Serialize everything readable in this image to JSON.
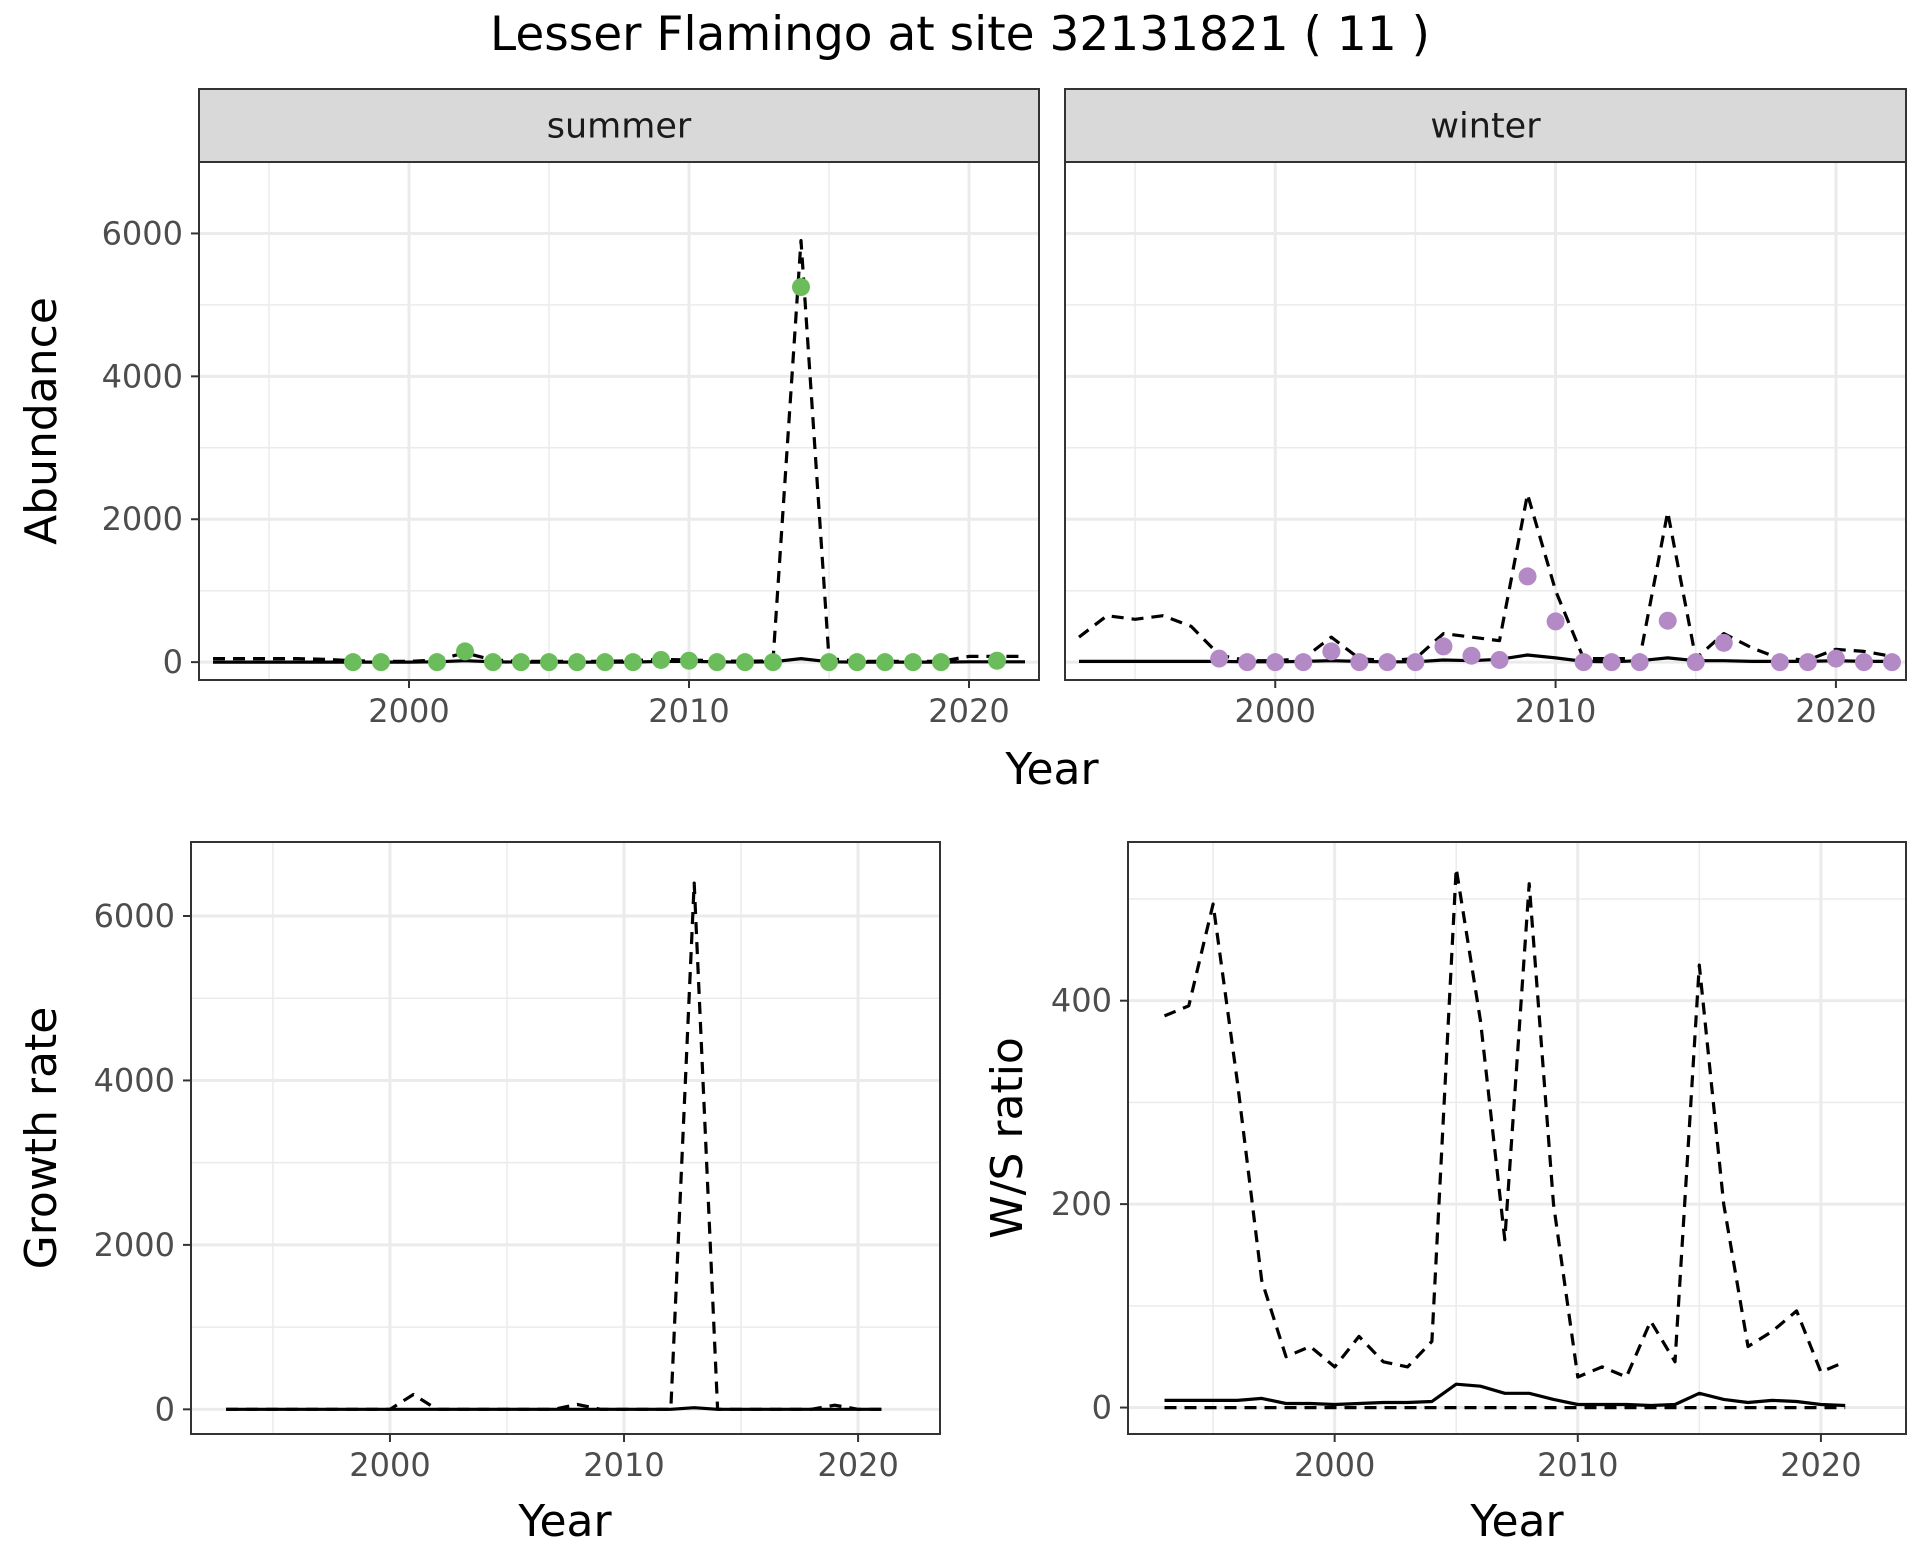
{
  "title": "Lesser Flamingo at site 32131821 ( 11 )",
  "colors": {
    "summer_points": "#6bbd5b",
    "winter_points": "#b48ac6",
    "line": "#000000",
    "strip": "#d9d9d9"
  },
  "chart_data": [
    {
      "id": "summer",
      "type": "line",
      "panel_label": "summer",
      "xlabel": "Year",
      "ylabel": "Abundance",
      "xlim": [
        1992.5,
        2022.5
      ],
      "ylim": [
        -250,
        7000
      ],
      "x_ticks": [
        2000,
        2010,
        2020
      ],
      "y_ticks": [
        0,
        2000,
        4000,
        6000
      ],
      "grid": true,
      "points": {
        "name": "observed count",
        "x": [
          1998,
          1999,
          2001,
          2002,
          2003,
          2004,
          2005,
          2006,
          2007,
          2008,
          2009,
          2010,
          2011,
          2012,
          2013,
          2014,
          2015,
          2016,
          2017,
          2018,
          2019,
          2021
        ],
        "y": [
          0,
          0,
          0,
          150,
          0,
          0,
          0,
          0,
          0,
          0,
          30,
          20,
          0,
          0,
          0,
          5250,
          0,
          0,
          0,
          0,
          0,
          20
        ]
      },
      "series": [
        {
          "style": "solid",
          "x": [
            1993,
            1994,
            1995,
            1996,
            1997,
            1998,
            1999,
            2000,
            2001,
            2002,
            2003,
            2004,
            2005,
            2006,
            2007,
            2008,
            2009,
            2010,
            2011,
            2012,
            2013,
            2014,
            2015,
            2016,
            2017,
            2018,
            2019,
            2020,
            2021,
            2022
          ],
          "y": [
            0,
            0,
            0,
            0,
            0,
            0,
            0,
            0,
            5,
            20,
            5,
            0,
            0,
            0,
            0,
            0,
            10,
            10,
            5,
            0,
            5,
            50,
            5,
            0,
            0,
            0,
            0,
            5,
            5,
            5
          ]
        },
        {
          "style": "dashed",
          "x": [
            1993,
            1994,
            1995,
            1996,
            1997,
            1998,
            1999,
            2000,
            2001,
            2002,
            2003,
            2004,
            2005,
            2006,
            2007,
            2008,
            2009,
            2010,
            2011,
            2012,
            2013,
            2014,
            2015,
            2016,
            2017,
            2018,
            2019,
            2020,
            2021,
            2022
          ],
          "y": [
            50,
            50,
            50,
            50,
            40,
            20,
            10,
            10,
            30,
            130,
            30,
            10,
            10,
            10,
            10,
            20,
            40,
            30,
            20,
            10,
            20,
            5900,
            50,
            10,
            10,
            10,
            10,
            80,
            80,
            80
          ]
        }
      ]
    },
    {
      "id": "winter",
      "type": "line",
      "panel_label": "winter",
      "xlabel": "Year",
      "ylabel": "Abundance",
      "xlim": [
        1992.5,
        2022.5
      ],
      "ylim": [
        -250,
        7000
      ],
      "x_ticks": [
        2000,
        2010,
        2020
      ],
      "y_ticks": [
        0,
        2000,
        4000,
        6000
      ],
      "grid": true,
      "points": {
        "name": "observed count",
        "x": [
          1998,
          1999,
          2000,
          2001,
          2002,
          2003,
          2004,
          2005,
          2006,
          2007,
          2008,
          2009,
          2010,
          2011,
          2012,
          2013,
          2014,
          2015,
          2016,
          2018,
          2019,
          2020,
          2021,
          2022
        ],
        "y": [
          50,
          0,
          0,
          0,
          150,
          0,
          0,
          0,
          220,
          90,
          30,
          1200,
          570,
          0,
          0,
          0,
          580,
          0,
          270,
          0,
          0,
          50,
          0,
          0
        ]
      },
      "series": [
        {
          "style": "solid",
          "x": [
            1993,
            1994,
            1995,
            1996,
            1997,
            1998,
            1999,
            2000,
            2001,
            2002,
            2003,
            2004,
            2005,
            2006,
            2007,
            2008,
            2009,
            2010,
            2011,
            2012,
            2013,
            2014,
            2015,
            2016,
            2017,
            2018,
            2019,
            2020,
            2021,
            2022
          ],
          "y": [
            10,
            10,
            10,
            10,
            10,
            10,
            5,
            5,
            10,
            20,
            10,
            5,
            5,
            30,
            20,
            40,
            100,
            60,
            10,
            5,
            20,
            60,
            20,
            20,
            10,
            10,
            10,
            20,
            10,
            10
          ]
        },
        {
          "style": "dashed",
          "x": [
            1993,
            1994,
            1995,
            1996,
            1997,
            1998,
            1999,
            2000,
            2001,
            2002,
            2003,
            2004,
            2005,
            2006,
            2007,
            2008,
            2009,
            2010,
            2011,
            2012,
            2013,
            2014,
            2015,
            2016,
            2017,
            2018,
            2019,
            2020,
            2021,
            2022
          ],
          "y": [
            350,
            650,
            600,
            650,
            500,
            100,
            20,
            20,
            50,
            350,
            50,
            20,
            50,
            400,
            350,
            300,
            2350,
            1000,
            50,
            50,
            50,
            2100,
            50,
            400,
            200,
            50,
            30,
            180,
            150,
            80
          ]
        }
      ]
    },
    {
      "id": "growth",
      "type": "line",
      "xlabel": "Year",
      "ylabel": "Growth rate",
      "xlim": [
        1991.5,
        2023.5
      ],
      "ylim": [
        -300,
        6900
      ],
      "x_ticks": [
        2000,
        2010,
        2020
      ],
      "y_ticks": [
        0,
        2000,
        4000,
        6000
      ],
      "grid": true,
      "series": [
        {
          "style": "solid",
          "x": [
            1993,
            1994,
            1995,
            1996,
            1997,
            1998,
            1999,
            2000,
            2001,
            2002,
            2003,
            2004,
            2005,
            2006,
            2007,
            2008,
            2009,
            2010,
            2011,
            2012,
            2013,
            2014,
            2015,
            2016,
            2017,
            2018,
            2019,
            2020,
            2021
          ],
          "y": [
            0,
            0,
            0,
            0,
            0,
            0,
            0,
            0,
            0,
            0,
            0,
            0,
            0,
            0,
            0,
            0,
            0,
            0,
            0,
            0,
            20,
            0,
            0,
            0,
            0,
            0,
            0,
            0,
            0
          ]
        },
        {
          "style": "dashed",
          "x": [
            1993,
            1994,
            1995,
            1996,
            1997,
            1998,
            1999,
            2000,
            2001,
            2002,
            2003,
            2004,
            2005,
            2006,
            2007,
            2008,
            2009,
            2010,
            2011,
            2012,
            2013,
            2014,
            2015,
            2016,
            2017,
            2018,
            2019,
            2020,
            2021
          ],
          "y": [
            0,
            0,
            0,
            0,
            0,
            0,
            0,
            0,
            180,
            0,
            0,
            0,
            0,
            0,
            0,
            60,
            0,
            0,
            0,
            0,
            6400,
            0,
            0,
            0,
            0,
            0,
            50,
            0,
            0
          ]
        }
      ]
    },
    {
      "id": "ratio",
      "type": "line",
      "xlabel": "Year",
      "ylabel": "W/S ratio",
      "xlim": [
        1991.5,
        2023.5
      ],
      "ylim": [
        -26,
        556
      ],
      "x_ticks": [
        2000,
        2010,
        2020
      ],
      "y_ticks": [
        0,
        200,
        400
      ],
      "grid": true,
      "series": [
        {
          "style": "solid",
          "x": [
            1993,
            1994,
            1995,
            1996,
            1997,
            1998,
            1999,
            2000,
            2001,
            2002,
            2003,
            2004,
            2005,
            2006,
            2007,
            2008,
            2009,
            2010,
            2011,
            2012,
            2013,
            2014,
            2015,
            2016,
            2017,
            2018,
            2019,
            2020,
            2021
          ],
          "y": [
            7,
            7,
            7,
            7,
            9,
            4,
            4,
            3,
            4,
            5,
            5,
            6,
            23,
            21,
            14,
            14,
            8,
            3,
            3,
            3,
            2,
            3,
            14,
            8,
            5,
            7,
            6,
            3,
            2
          ]
        },
        {
          "style": "dashed",
          "x": [
            1993,
            1994,
            1995,
            1996,
            1997,
            1998,
            1999,
            2000,
            2001,
            2002,
            2003,
            2004,
            2005,
            2006,
            2007,
            2008,
            2009,
            2010,
            2011,
            2012,
            2013,
            2014,
            2015,
            2016,
            2017,
            2018,
            2019,
            2020,
            2021
          ],
          "y": [
            385,
            395,
            495,
            320,
            125,
            50,
            60,
            40,
            70,
            45,
            40,
            65,
            530,
            380,
            165,
            515,
            200,
            30,
            40,
            30,
            85,
            45,
            435,
            200,
            60,
            75,
            95,
            35,
            45
          ]
        },
        {
          "style": "dashed",
          "x": [
            1993,
            2021
          ],
          "y": [
            0,
            0
          ]
        }
      ]
    }
  ]
}
